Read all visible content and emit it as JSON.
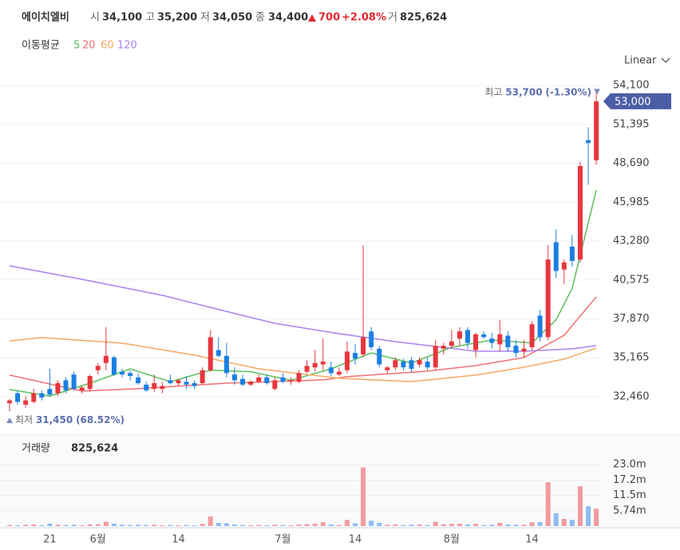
{
  "header": {
    "name": "에이치엘비",
    "items": [
      {
        "label": "시",
        "value": "34,100"
      },
      {
        "label": "고",
        "value": "35,200"
      },
      {
        "label": "저",
        "value": "34,050"
      },
      {
        "label": "종",
        "value": "34,400"
      }
    ],
    "change": "700",
    "change_pct": "+2.08%",
    "volume_label": "거",
    "volume": "825,624",
    "scale": "Linear"
  },
  "chart_data": [
    {
      "type": "candlestick",
      "legend_title": "이동평균",
      "categories": [
        null,
        null,
        null,
        null,
        null,
        "21",
        null,
        null,
        null,
        null,
        null,
        "6월",
        null,
        null,
        null,
        null,
        null,
        null,
        null,
        null,
        null,
        "14",
        null,
        null,
        null,
        null,
        null,
        null,
        null,
        null,
        null,
        null,
        null,
        null,
        "7월",
        null,
        null,
        null,
        null,
        null,
        null,
        null,
        null,
        "14",
        null,
        null,
        null,
        null,
        null,
        null,
        null,
        null,
        null,
        null,
        null,
        "8월",
        null,
        null,
        null,
        null,
        null,
        null,
        null,
        null,
        null,
        "14",
        null,
        null,
        null,
        null,
        null,
        null,
        null,
        null
      ],
      "open": [
        32000,
        32700,
        31900,
        32100,
        32700,
        33000,
        32700,
        33600,
        34000,
        32900,
        33000,
        34300,
        34800,
        35200,
        34200,
        34100,
        33800,
        33300,
        33000,
        33000,
        33600,
        33400,
        33500,
        33400,
        33400,
        34300,
        35700,
        35300,
        34000,
        33700,
        33300,
        33500,
        33800,
        33000,
        33800,
        33500,
        33500,
        34200,
        34500,
        34700,
        34500,
        34000,
        34300,
        35500,
        35400,
        37000,
        35800,
        34300,
        34500,
        34900,
        35000,
        34700,
        34900,
        34500,
        35800,
        36000,
        36500,
        37100,
        35700,
        36800,
        36500,
        36100,
        36700,
        36000,
        35600,
        35900,
        38100,
        36600,
        43200,
        41300,
        42900,
        42000,
        50300,
        48900
      ],
      "high": [
        32300,
        32900,
        32500,
        33000,
        32900,
        34400,
        33600,
        33800,
        34200,
        33200,
        34000,
        34800,
        37300,
        35300,
        34400,
        34300,
        34100,
        33500,
        34000,
        33500,
        34000,
        33700,
        33900,
        33600,
        34500,
        37100,
        36600,
        36200,
        34500,
        34000,
        33600,
        34000,
        34000,
        33800,
        34100,
        33800,
        34300,
        35000,
        35700,
        36500,
        34900,
        34500,
        36300,
        36100,
        43000,
        37300,
        36000,
        34600,
        35200,
        35100,
        35200,
        35200,
        35200,
        36400,
        36200,
        37100,
        37300,
        37300,
        36900,
        37000,
        36900,
        37800,
        37000,
        36400,
        36400,
        37700,
        38500,
        43000,
        44100,
        42000,
        43700,
        48800,
        51200,
        53700
      ],
      "low": [
        31450,
        31900,
        31700,
        32000,
        32200,
        32500,
        32500,
        32700,
        32900,
        32700,
        32800,
        34000,
        34300,
        33900,
        33800,
        33600,
        33300,
        32800,
        32800,
        32700,
        33300,
        33200,
        33000,
        33000,
        33300,
        34200,
        35200,
        33800,
        33300,
        33200,
        33200,
        33400,
        33300,
        32900,
        33400,
        33300,
        33400,
        34100,
        34200,
        34300,
        33900,
        33900,
        34100,
        34700,
        35200,
        35700,
        34500,
        34100,
        34300,
        34300,
        34200,
        34500,
        34300,
        34300,
        35400,
        35800,
        36000,
        35800,
        35200,
        36500,
        35800,
        35600,
        35600,
        35200,
        35200,
        35700,
        36300,
        36400,
        40700,
        40300,
        41500,
        41800,
        47200,
        48600
      ],
      "close": [
        32200,
        32100,
        32200,
        32700,
        32400,
        32600,
        33400,
        32900,
        33000,
        33100,
        33900,
        34600,
        35300,
        34000,
        34000,
        33900,
        33400,
        32900,
        33400,
        33200,
        33400,
        33600,
        33300,
        33200,
        34300,
        36600,
        35300,
        34100,
        33600,
        33300,
        33500,
        33800,
        33400,
        33600,
        33500,
        33600,
        34100,
        34600,
        34800,
        34900,
        34100,
        34200,
        35600,
        35100,
        36600,
        35900,
        34700,
        34500,
        35000,
        34500,
        34400,
        35000,
        34500,
        36000,
        36000,
        36300,
        37000,
        36200,
        36800,
        36600,
        36200,
        36800,
        35900,
        35500,
        35800,
        37500,
        36600,
        42000,
        41200,
        41800,
        41900,
        48500,
        50100,
        53000
      ],
      "up_color": "#e8363d",
      "down_color": "#1b7fe3",
      "ma": [
        {
          "name": "5",
          "color": "#5cbf5c",
          "x": [
            0,
            5,
            10,
            15,
            20,
            25,
            30,
            35,
            40,
            45,
            50,
            55,
            60,
            65,
            68,
            70,
            73
          ],
          "values": [
            32960,
            32500,
            33400,
            34400,
            33500,
            34300,
            34200,
            33600,
            34400,
            35500,
            34800,
            35900,
            36400,
            36200,
            37800,
            40000,
            46830
          ]
        },
        {
          "name": "20",
          "color": "#ef7272",
          "x": [
            0,
            9,
            16,
            27,
            39,
            42,
            52,
            58,
            64,
            69,
            73
          ],
          "values": [
            33960,
            32850,
            33015,
            33400,
            33630,
            33850,
            34240,
            34620,
            35180,
            36730,
            39400
          ]
        },
        {
          "name": "60",
          "color": "#f5a864",
          "x": [
            0,
            4,
            14,
            23,
            31,
            41,
            50,
            58,
            64,
            69,
            73
          ],
          "values": [
            36340,
            36570,
            36180,
            35350,
            34400,
            33740,
            33510,
            33960,
            34510,
            35070,
            35840
          ]
        },
        {
          "name": "120",
          "color": "#a983ec",
          "x": [
            0,
            9,
            19,
            25,
            33,
            41,
            48,
            58,
            64,
            70,
            73
          ],
          "values": [
            41560,
            40620,
            39510,
            38670,
            37560,
            36840,
            36290,
            35620,
            35620,
            35790,
            36010
          ]
        }
      ],
      "ylim": [
        30070,
        55050
      ],
      "yticks": [
        {
          "value": 32460,
          "label": "32,460"
        },
        {
          "value": 35165,
          "label": "35,165"
        },
        {
          "value": 37870,
          "label": "37,870"
        },
        {
          "value": 40575,
          "label": "40,575"
        },
        {
          "value": 43280,
          "label": "43,280"
        },
        {
          "value": 45985,
          "label": "45,985"
        },
        {
          "value": 48690,
          "label": "48,690"
        },
        {
          "value": 51395,
          "label": "51,395"
        },
        {
          "value": 54100,
          "label": "54,100"
        }
      ],
      "grid": true,
      "max": {
        "label": "최고",
        "value": 53700,
        "value_label": "53,700",
        "change": "(-1.30%)"
      },
      "min": {
        "label": "최저",
        "value": 31450,
        "value_label": "31,450",
        "change": "(68.52%)"
      },
      "last": {
        "value": 53000,
        "label": "53,000"
      }
    },
    {
      "type": "bar",
      "title": "거래량",
      "title_value": "825,624",
      "values": [
        400000,
        300000,
        500000,
        600000,
        300000,
        900000,
        500000,
        400000,
        500000,
        300000,
        600000,
        700000,
        1600000,
        900000,
        500000,
        400000,
        500000,
        400000,
        500000,
        300000,
        400000,
        300000,
        400000,
        300000,
        800000,
        3600000,
        1200000,
        1000000,
        600000,
        400000,
        300000,
        400000,
        300000,
        500000,
        400000,
        300000,
        600000,
        700000,
        900000,
        1400000,
        600000,
        400000,
        2300000,
        1000000,
        22000000,
        2000000,
        1200000,
        500000,
        600000,
        400000,
        500000,
        600000,
        400000,
        1600000,
        700000,
        800000,
        900000,
        600000,
        800000,
        400000,
        500000,
        1200000,
        600000,
        500000,
        500000,
        1400000,
        1500000,
        16400000,
        4800000,
        2700000,
        2300000,
        14900000,
        7400000,
        6500000
      ],
      "up_color": "#f29ba0",
      "down_color": "#8dbdf2",
      "ylim": [
        0,
        33200000
      ],
      "yticks": [
        {
          "value": 5740000,
          "label": "5.74m"
        },
        {
          "value": 11500000,
          "label": "11.5m"
        },
        {
          "value": 17200000,
          "label": "17.2m"
        },
        {
          "value": 23000000,
          "label": "23.0m"
        }
      ]
    }
  ]
}
